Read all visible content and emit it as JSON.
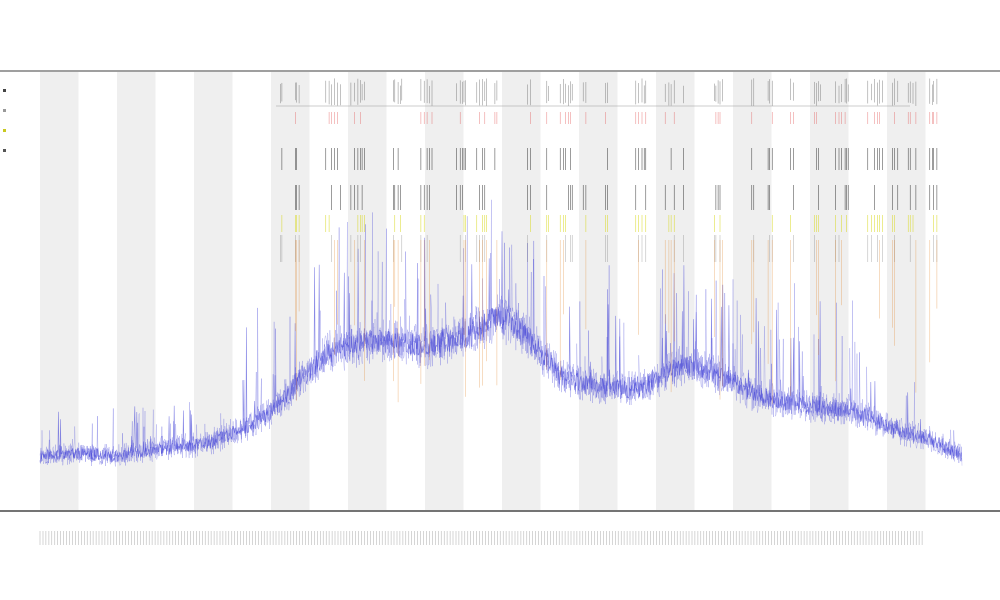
{
  "chart_data": {
    "type": "line",
    "title": "",
    "subtitles": [
      "",
      ""
    ],
    "xlabel": "",
    "ylabel": "",
    "grid": false,
    "legend_placement": "top-left",
    "shaded_bands": {
      "count": 12,
      "color": "#efefef"
    },
    "background_series": {
      "name": "",
      "color": "#3b3bd6",
      "x_range": [
        1,
        300
      ],
      "values_profile": [
        {
          "x": 1,
          "y": 0.08
        },
        {
          "x": 12,
          "y": 0.09
        },
        {
          "x": 25,
          "y": 0.08
        },
        {
          "x": 40,
          "y": 0.1
        },
        {
          "x": 55,
          "y": 0.11
        },
        {
          "x": 65,
          "y": 0.14
        },
        {
          "x": 75,
          "y": 0.18
        },
        {
          "x": 85,
          "y": 0.26
        },
        {
          "x": 95,
          "y": 0.33
        },
        {
          "x": 110,
          "y": 0.36
        },
        {
          "x": 125,
          "y": 0.34
        },
        {
          "x": 140,
          "y": 0.37
        },
        {
          "x": 150,
          "y": 0.42
        },
        {
          "x": 160,
          "y": 0.36
        },
        {
          "x": 170,
          "y": 0.27
        },
        {
          "x": 180,
          "y": 0.25
        },
        {
          "x": 195,
          "y": 0.24
        },
        {
          "x": 210,
          "y": 0.3
        },
        {
          "x": 220,
          "y": 0.28
        },
        {
          "x": 235,
          "y": 0.22
        },
        {
          "x": 250,
          "y": 0.2
        },
        {
          "x": 265,
          "y": 0.19
        },
        {
          "x": 280,
          "y": 0.14
        },
        {
          "x": 290,
          "y": 0.12
        },
        {
          "x": 300,
          "y": 0.08
        }
      ],
      "ylim": [
        0,
        1
      ]
    },
    "event_tracks": [
      {
        "name": "",
        "color": "#666666",
        "role": "top-ticks"
      },
      {
        "name": "",
        "color": "#e05050",
        "role": "red-ticks"
      },
      {
        "name": "",
        "color": "#222222",
        "role": "dark-ticks"
      },
      {
        "name": "",
        "color": "#d8d820",
        "role": "yellow-ticks"
      },
      {
        "name": "",
        "color": "#e08020",
        "role": "orange-lines"
      }
    ],
    "event_x_range": [
      79,
      292
    ]
  },
  "legend": {
    "items": [
      {
        "label": "",
        "color": "#444444"
      },
      {
        "label": "",
        "color": "#999999"
      },
      {
        "label": "",
        "color": "#c8c820"
      },
      {
        "label": "",
        "color": "#555555"
      }
    ]
  },
  "band_labels": [
    "",
    ""
  ]
}
